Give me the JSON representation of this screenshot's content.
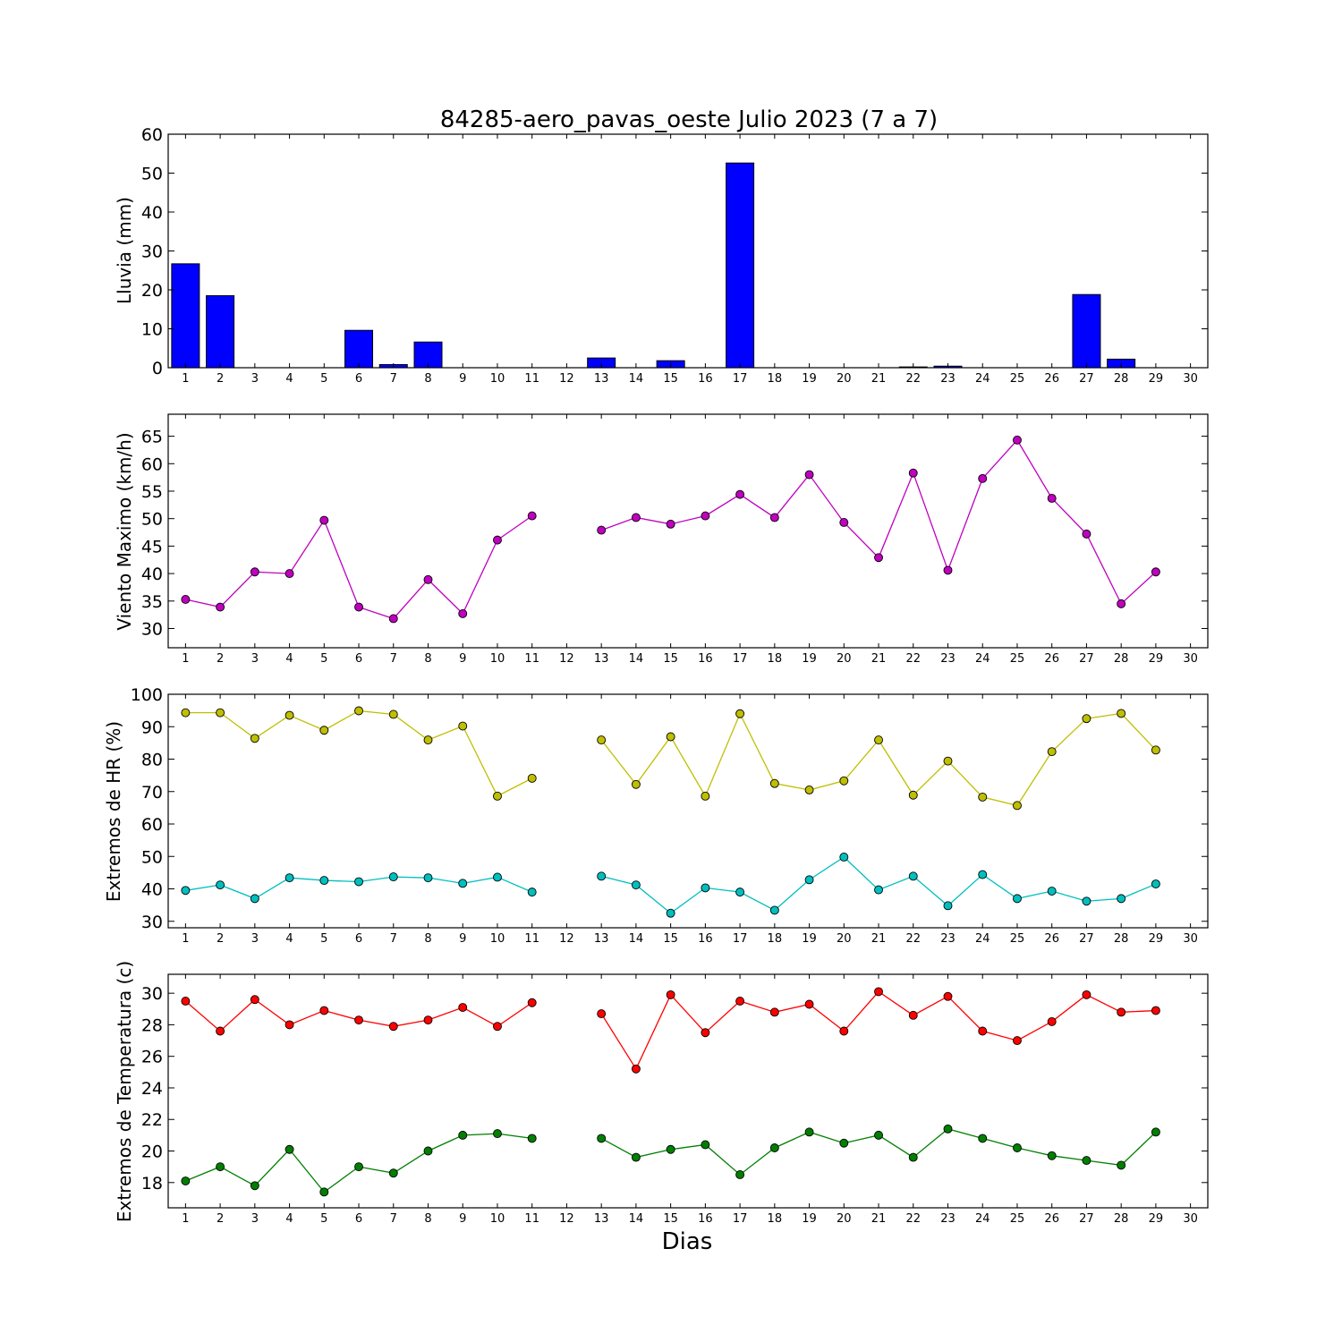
{
  "chart_data": [
    {
      "type": "bar",
      "title": "84285-aero_pavas_oeste Julio 2023  (7 a 7)",
      "ylabel": "Lluvia (mm)",
      "ylim": [
        0,
        60
      ],
      "yticks": [
        0,
        10,
        20,
        30,
        40,
        50,
        60
      ],
      "categories": [
        "1",
        "2",
        "3",
        "4",
        "5",
        "6",
        "7",
        "8",
        "9",
        "10",
        "11",
        "12",
        "13",
        "14",
        "15",
        "16",
        "17",
        "18",
        "19",
        "20",
        "21",
        "22",
        "23",
        "24",
        "25",
        "26",
        "27",
        "28",
        "29",
        "30"
      ],
      "values": [
        26.7,
        18.5,
        0,
        0,
        0,
        9.6,
        0.8,
        6.6,
        0,
        0,
        0,
        null,
        2.5,
        0,
        1.8,
        0,
        52.6,
        0,
        0,
        0,
        0,
        0.2,
        0.4,
        0,
        0,
        0,
        18.8,
        2.2,
        0,
        null
      ],
      "color": "#0000ff",
      "grid": false
    },
    {
      "type": "line",
      "ylabel": "Viento Maximo (km/h)",
      "ylim": [
        26.5,
        69
      ],
      "yticks": [
        30,
        35,
        40,
        45,
        50,
        55,
        60,
        65
      ],
      "x": [
        1,
        2,
        3,
        4,
        5,
        6,
        7,
        8,
        9,
        10,
        11,
        12,
        13,
        14,
        15,
        16,
        17,
        18,
        19,
        20,
        21,
        22,
        23,
        24,
        25,
        26,
        27,
        28,
        29
      ],
      "series": [
        {
          "color": "#bf00bf",
          "values": [
            35.3,
            33.9,
            40.3,
            40.0,
            49.7,
            33.9,
            31.8,
            38.9,
            32.7,
            46.1,
            50.5,
            null,
            47.9,
            50.2,
            49.0,
            50.5,
            54.4,
            50.2,
            58.0,
            49.3,
            42.9,
            58.3,
            40.6,
            57.3,
            64.3,
            53.7,
            47.2,
            34.5,
            40.3
          ]
        }
      ],
      "grid": false
    },
    {
      "type": "line",
      "ylabel": "Extremos de HR (%)",
      "ylim": [
        28,
        100
      ],
      "yticks": [
        30,
        40,
        50,
        60,
        70,
        80,
        90,
        100
      ],
      "x": [
        1,
        2,
        3,
        4,
        5,
        6,
        7,
        8,
        9,
        10,
        11,
        12,
        13,
        14,
        15,
        16,
        17,
        18,
        19,
        20,
        21,
        22,
        23,
        24,
        25,
        26,
        27,
        28,
        29
      ],
      "series": [
        {
          "color": "#bfbf00",
          "values": [
            94.3,
            94.3,
            86.4,
            93.5,
            88.9,
            94.9,
            93.8,
            85.9,
            90.2,
            68.6,
            74.1,
            null,
            85.9,
            72.2,
            86.9,
            68.6,
            94.0,
            72.5,
            70.5,
            73.3,
            85.9,
            68.9,
            79.4,
            68.3,
            65.7,
            82.3,
            92.5,
            94.1,
            82.8
          ]
        },
        {
          "color": "#00bfbf",
          "values": [
            39.5,
            41.2,
            37.0,
            43.4,
            42.6,
            42.2,
            43.7,
            43.4,
            41.7,
            43.6,
            39.0,
            null,
            43.9,
            41.2,
            32.5,
            40.3,
            39.0,
            33.4,
            42.8,
            49.8,
            39.7,
            43.9,
            34.8,
            44.4,
            37.0,
            39.3,
            36.2,
            37.0,
            41.5
          ]
        }
      ],
      "grid": false
    },
    {
      "type": "line",
      "ylabel": "Extremos de Temperatura (c)",
      "xlabel": "Dias",
      "ylim": [
        16.4,
        31.2
      ],
      "yticks": [
        18,
        20,
        22,
        24,
        26,
        28,
        30
      ],
      "x": [
        1,
        2,
        3,
        4,
        5,
        6,
        7,
        8,
        9,
        10,
        11,
        12,
        13,
        14,
        15,
        16,
        17,
        18,
        19,
        20,
        21,
        22,
        23,
        24,
        25,
        26,
        27,
        28,
        29
      ],
      "series": [
        {
          "color": "#ff0000",
          "values": [
            29.5,
            27.6,
            29.6,
            28.0,
            28.9,
            28.3,
            27.9,
            28.3,
            29.1,
            27.9,
            29.4,
            null,
            28.7,
            25.2,
            29.9,
            27.5,
            29.5,
            28.8,
            29.3,
            27.6,
            30.1,
            28.6,
            29.8,
            27.6,
            27.0,
            28.2,
            29.9,
            28.8,
            28.9
          ]
        },
        {
          "color": "#007f00",
          "values": [
            18.1,
            19.0,
            17.8,
            20.1,
            17.4,
            19.0,
            18.6,
            20.0,
            21.0,
            21.1,
            20.8,
            null,
            20.8,
            19.6,
            20.1,
            20.4,
            18.5,
            20.2,
            21.2,
            20.5,
            21.0,
            19.6,
            21.4,
            20.8,
            20.2,
            19.7,
            19.4,
            19.1,
            21.2
          ]
        }
      ],
      "grid": false
    }
  ],
  "xaxis": {
    "ticks": [
      "1",
      "2",
      "3",
      "4",
      "5",
      "6",
      "7",
      "8",
      "9",
      "10",
      "11",
      "12",
      "13",
      "14",
      "15",
      "16",
      "17",
      "18",
      "19",
      "20",
      "21",
      "22",
      "23",
      "24",
      "25",
      "26",
      "27",
      "28",
      "29",
      "30"
    ],
    "xlim": [
      0.5,
      30.5
    ]
  }
}
